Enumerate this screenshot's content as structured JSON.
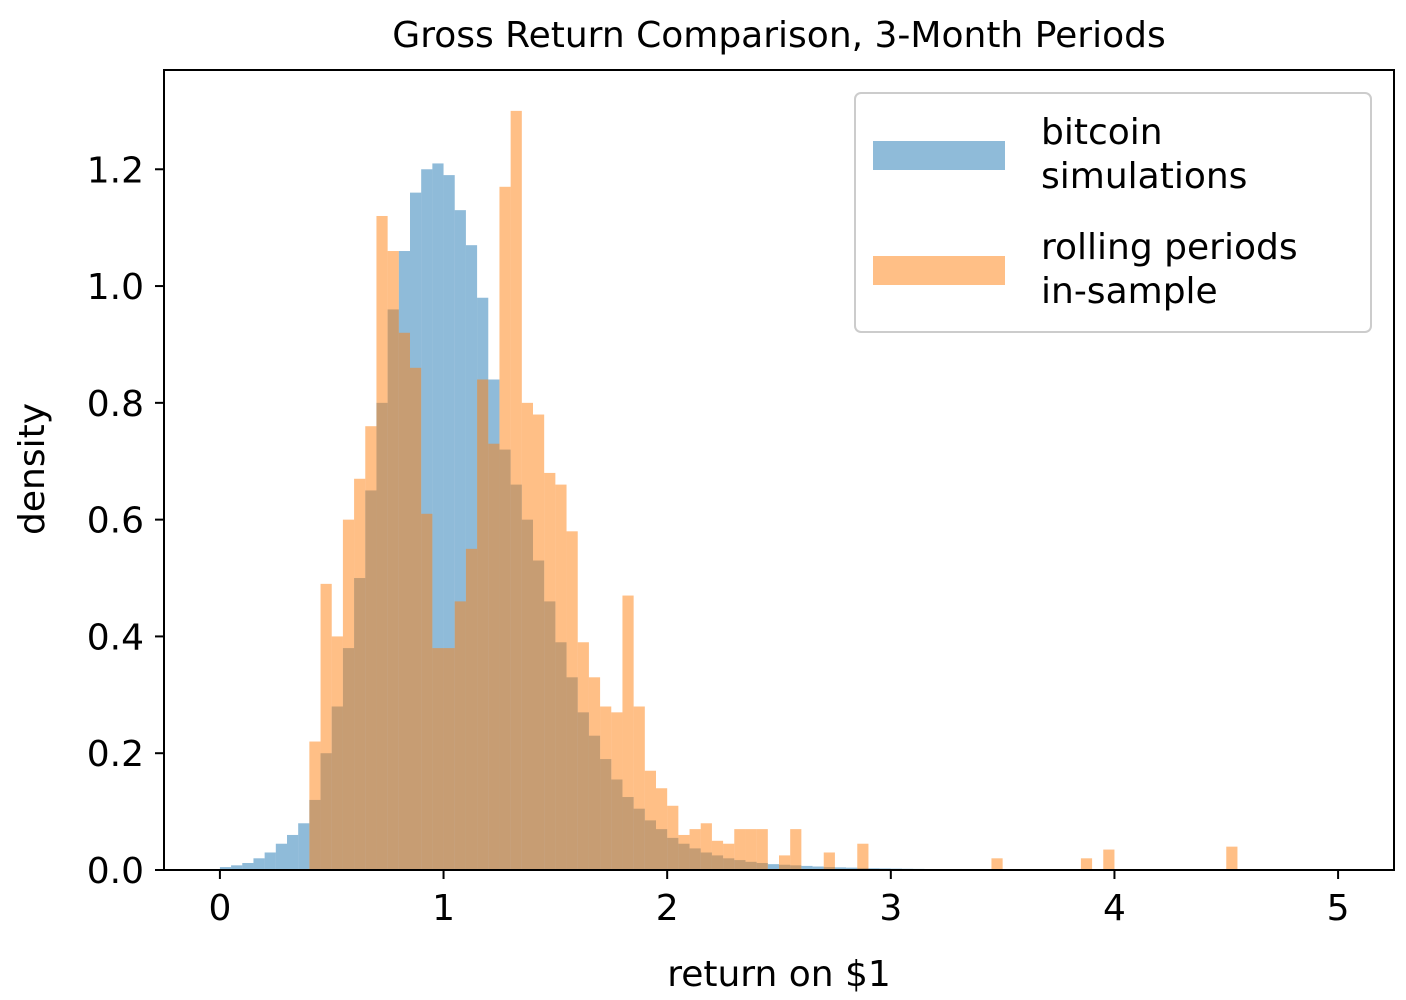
{
  "chart_data": {
    "type": "histogram",
    "title": "Gross Return Comparison, 3-Month Periods",
    "xlabel": "return on $1",
    "ylabel": "density",
    "xlim": [
      -0.25,
      5.25
    ],
    "ylim": [
      0,
      1.37
    ],
    "xticks": [
      0,
      1,
      2,
      3,
      4,
      5
    ],
    "yticks": [
      0.0,
      0.2,
      0.4,
      0.6,
      0.8,
      1.0,
      1.2
    ],
    "ytick_labels": [
      "0.0",
      "0.2",
      "0.4",
      "0.6",
      "0.8",
      "1.0",
      "1.2"
    ],
    "bin_width": 0.05,
    "grid": false,
    "legend": {
      "placement": "upper right"
    },
    "series": [
      {
        "name": "bitcoin\nsimulations",
        "color": "#1f77b4",
        "alpha": 0.5,
        "bin_start": 0.0,
        "values": [
          0.005,
          0.008,
          0.012,
          0.02,
          0.03,
          0.045,
          0.06,
          0.08,
          0.12,
          0.2,
          0.28,
          0.38,
          0.5,
          0.65,
          0.8,
          0.96,
          1.06,
          1.16,
          1.2,
          1.21,
          1.19,
          1.13,
          1.07,
          0.98,
          0.84,
          0.72,
          0.66,
          0.6,
          0.53,
          0.46,
          0.39,
          0.33,
          0.27,
          0.23,
          0.19,
          0.155,
          0.125,
          0.105,
          0.085,
          0.07,
          0.055,
          0.045,
          0.037,
          0.03,
          0.025,
          0.02,
          0.017,
          0.014,
          0.012,
          0.01,
          0.009,
          0.008,
          0.007,
          0.006,
          0.005,
          0.0045,
          0.004,
          0.0035,
          0.003,
          0.0027,
          0.0024,
          0.0021,
          0.0019,
          0.0017,
          0.0015,
          0.0013,
          0.0012,
          0.0011,
          0.001,
          0.0009,
          0.0008,
          0.0007,
          0.0006,
          0.0005,
          0.0005,
          0.0004,
          0.0004,
          0.0003,
          0.0003,
          0.0002,
          0.0002,
          0.0002,
          0.0001,
          0.0001,
          0.0001,
          0.0001,
          0.0001,
          0.0001,
          0.0001,
          0.0001,
          0.0001,
          0.0001,
          0.0001,
          0.0001,
          0.0001,
          0.0001,
          0.0001,
          0.0001,
          0.0001,
          0.0001
        ]
      },
      {
        "name": "rolling periods\nin-sample",
        "color": "#ff7f0e",
        "alpha": 0.5,
        "bin_start": 0.4,
        "values": [
          0.22,
          0.49,
          0.4,
          0.6,
          0.67,
          0.76,
          1.12,
          1.06,
          0.92,
          0.86,
          0.61,
          0.38,
          0.38,
          0.46,
          0.55,
          0.84,
          0.73,
          1.17,
          1.3,
          0.8,
          0.78,
          0.68,
          0.66,
          0.58,
          0.39,
          0.33,
          0.28,
          0.27,
          0.47,
          0.28,
          0.17,
          0.14,
          0.11,
          0.06,
          0.07,
          0.08,
          0.05,
          0.045,
          0.07,
          0.07,
          0.07,
          0.0,
          0.025,
          0.07,
          0.0,
          0.0,
          0.03,
          0.0,
          0.0,
          0.045,
          0.0,
          0.0,
          0.0,
          0.0,
          0.0,
          0.0,
          0.0,
          0.0,
          0.0,
          0.0,
          0.0,
          0.02,
          0.0,
          0.0,
          0.0,
          0.0,
          0.0,
          0.0,
          0.0,
          0.02,
          0.0,
          0.035,
          0.0,
          0.0,
          0.0,
          0.0,
          0.0,
          0.0,
          0.0,
          0.0,
          0.0,
          0.0,
          0.04
        ]
      }
    ]
  }
}
